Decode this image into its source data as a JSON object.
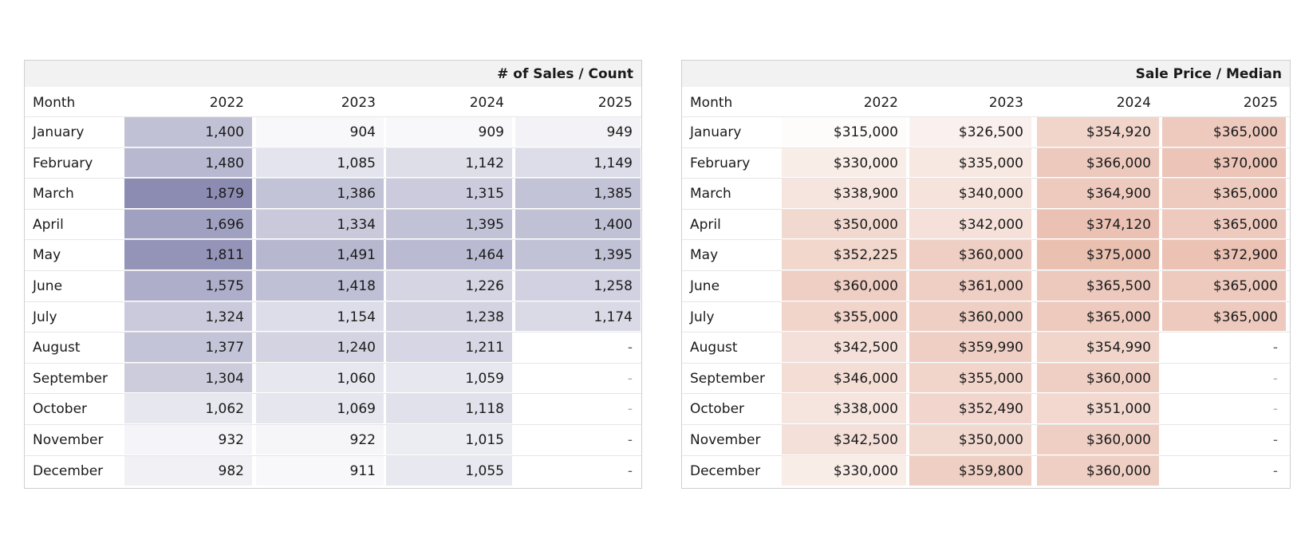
{
  "chart_data": [
    {
      "type": "table",
      "title": "# of Sales / Count",
      "row_header": "Month",
      "columns": [
        "2022",
        "2023",
        "2024",
        "2025"
      ],
      "rows": [
        "January",
        "February",
        "March",
        "April",
        "May",
        "June",
        "July",
        "August",
        "September",
        "October",
        "November",
        "December"
      ],
      "values": [
        [
          "1,400",
          "904",
          "909",
          "949"
        ],
        [
          "1,480",
          "1,085",
          "1,142",
          "1,149"
        ],
        [
          "1,879",
          "1,386",
          "1,315",
          "1,385"
        ],
        [
          "1,696",
          "1,334",
          "1,395",
          "1,400"
        ],
        [
          "1,811",
          "1,491",
          "1,464",
          "1,395"
        ],
        [
          "1,575",
          "1,418",
          "1,226",
          "1,258"
        ],
        [
          "1,324",
          "1,154",
          "1,238",
          "1,174"
        ],
        [
          "1,377",
          "1,240",
          "1,211",
          "-"
        ],
        [
          "1,304",
          "1,060",
          "1,059",
          "-"
        ],
        [
          "1,062",
          "1,069",
          "1,118",
          "-"
        ],
        [
          "932",
          "922",
          "1,015",
          "-"
        ],
        [
          "982",
          "911",
          "1,055",
          "-"
        ]
      ],
      "heat_color": "#7f7fab"
    },
    {
      "type": "table",
      "title": "Sale Price / Median",
      "row_header": "Month",
      "columns": [
        "2022",
        "2023",
        "2024",
        "2025"
      ],
      "rows": [
        "January",
        "February",
        "March",
        "April",
        "May",
        "June",
        "July",
        "August",
        "September",
        "October",
        "November",
        "December"
      ],
      "values": [
        [
          "$315,000",
          "$326,500",
          "$354,920",
          "$365,000"
        ],
        [
          "$330,000",
          "$335,000",
          "$366,000",
          "$370,000"
        ],
        [
          "$338,900",
          "$340,000",
          "$364,900",
          "$365,000"
        ],
        [
          "$350,000",
          "$342,000",
          "$374,120",
          "$365,000"
        ],
        [
          "$352,225",
          "$360,000",
          "$375,000",
          "$372,900"
        ],
        [
          "$360,000",
          "$361,000",
          "$365,500",
          "$365,000"
        ],
        [
          "$355,000",
          "$360,000",
          "$365,000",
          "$365,000"
        ],
        [
          "$342,500",
          "$359,990",
          "$354,990",
          "-"
        ],
        [
          "$346,000",
          "$355,000",
          "$360,000",
          "-"
        ],
        [
          "$338,000",
          "$352,490",
          "$351,000",
          "-"
        ],
        [
          "$342,500",
          "$350,000",
          "$360,000",
          "-"
        ],
        [
          "$330,000",
          "$359,800",
          "$360,000",
          "-"
        ]
      ],
      "heat_color": "#e8b9a9"
    }
  ]
}
